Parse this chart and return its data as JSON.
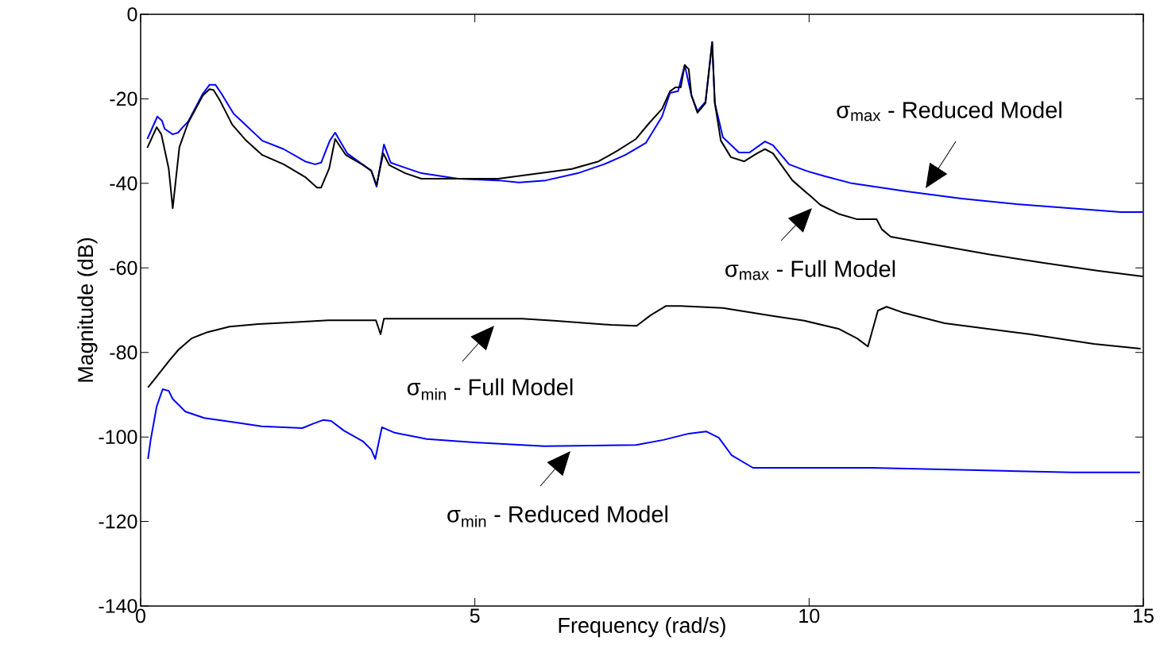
{
  "chart_data": {
    "type": "line",
    "xlabel": "Frequency (rad/s)",
    "ylabel": "Magnitude (dB)",
    "xlim": [
      0,
      15
    ],
    "ylim": [
      -140,
      0
    ],
    "xticks": [
      0,
      5,
      10,
      15
    ],
    "yticks": [
      -140,
      -120,
      -100,
      -80,
      -60,
      -40,
      -20,
      0
    ],
    "series": [
      {
        "color": "#0000ff",
        "x": [
          0.1,
          0.25,
          0.32,
          0.36,
          0.48,
          0.56,
          0.62,
          0.71,
          0.93,
          1.03,
          1.12,
          1.21,
          1.39,
          1.58,
          1.82,
          2.14,
          2.46,
          2.61,
          2.7,
          2.83,
          2.91,
          3.09,
          3.45,
          3.53,
          3.64,
          3.74,
          3.92,
          4.2,
          4.75,
          5.35,
          5.66,
          6.06,
          6.54,
          6.93,
          7.25,
          7.56,
          7.8,
          7.92,
          8.04,
          8.14,
          8.24,
          8.33,
          8.45,
          8.55,
          8.59,
          8.71,
          8.95,
          9.11,
          9.34,
          9.46,
          9.7,
          9.95,
          10.23,
          10.64,
          11.46,
          12.28,
          13.1,
          13.92,
          14.66,
          14.99
        ],
        "values": [
          -29.5,
          -24.2,
          -25.2,
          -27.1,
          -28.4,
          -28.0,
          -26.9,
          -25.4,
          -18.8,
          -16.7,
          -16.7,
          -18.8,
          -23.5,
          -26.3,
          -29.9,
          -31.9,
          -34.8,
          -35.5,
          -35.1,
          -29.9,
          -28.0,
          -32.9,
          -37.0,
          -40.8,
          -30.8,
          -35.1,
          -36.1,
          -37.6,
          -38.9,
          -39.3,
          -39.8,
          -39.3,
          -37.6,
          -35.5,
          -33.3,
          -30.4,
          -24.2,
          -18.6,
          -18.2,
          -12.0,
          -19.2,
          -22.9,
          -20.7,
          -6.6,
          -21.0,
          -29.1,
          -32.7,
          -32.7,
          -30.1,
          -31.0,
          -35.5,
          -37.0,
          -38.3,
          -40.0,
          -41.9,
          -43.6,
          -44.9,
          -45.9,
          -46.8,
          -46.8
        ]
      },
      {
        "color": "#000000",
        "x": [
          0.1,
          0.24,
          0.31,
          0.42,
          0.48,
          0.58,
          0.71,
          0.93,
          1.03,
          1.09,
          1.19,
          1.37,
          1.58,
          1.82,
          2.14,
          2.46,
          2.64,
          2.7,
          2.82,
          2.91,
          3.07,
          3.33,
          3.45,
          3.53,
          3.63,
          3.72,
          3.96,
          4.2,
          4.75,
          5.35,
          6.45,
          6.85,
          7.13,
          7.41,
          7.61,
          7.8,
          7.92,
          8.0,
          8.08,
          8.14,
          8.2,
          8.24,
          8.33,
          8.45,
          8.55,
          8.59,
          8.68,
          8.83,
          9.03,
          9.22,
          9.34,
          9.46,
          9.75,
          10.02,
          10.17,
          10.44,
          10.72,
          11.01,
          11.09,
          11.22,
          11.87,
          12.69,
          13.51,
          14.33,
          14.99
        ],
        "values": [
          -31.6,
          -26.7,
          -28.4,
          -36.5,
          -45.9,
          -31.4,
          -25.7,
          -19.2,
          -17.7,
          -17.9,
          -20.5,
          -26.1,
          -29.9,
          -33.3,
          -35.5,
          -38.5,
          -41.0,
          -41.0,
          -36.5,
          -29.5,
          -33.3,
          -35.7,
          -37.0,
          -40.4,
          -32.9,
          -35.7,
          -37.6,
          -38.9,
          -38.9,
          -38.9,
          -36.6,
          -34.8,
          -32.3,
          -29.5,
          -25.7,
          -22.4,
          -18.2,
          -17.3,
          -17.3,
          -12.0,
          -13.0,
          -19.2,
          -23.3,
          -21.0,
          -6.6,
          -21.0,
          -29.9,
          -33.8,
          -34.8,
          -32.9,
          -31.9,
          -32.9,
          -39.3,
          -43.0,
          -45.1,
          -47.2,
          -48.5,
          -48.5,
          -50.9,
          -52.6,
          -54.5,
          -56.8,
          -58.8,
          -60.7,
          -62.0
        ]
      },
      {
        "color": "#000000",
        "x": [
          0.11,
          0.24,
          0.43,
          0.57,
          0.76,
          1.0,
          1.33,
          1.76,
          2.23,
          2.81,
          3.52,
          3.59,
          3.64,
          4.28,
          5.71,
          6.18,
          7.04,
          7.42,
          7.63,
          7.86,
          8.08,
          8.71,
          9.47,
          9.93,
          10.44,
          10.72,
          10.88,
          11.03,
          11.16,
          11.39,
          12.03,
          13.3,
          14.26,
          14.96
        ],
        "values": [
          -88.3,
          -85.7,
          -81.9,
          -79.3,
          -76.7,
          -75.2,
          -73.9,
          -73.3,
          -72.9,
          -72.4,
          -72.4,
          -75.7,
          -72.0,
          -72.0,
          -72.0,
          -72.5,
          -73.5,
          -73.7,
          -71.2,
          -69.0,
          -69.0,
          -69.5,
          -71.4,
          -72.5,
          -74.4,
          -76.7,
          -78.6,
          -70.1,
          -69.2,
          -70.5,
          -73.1,
          -75.7,
          -78.0,
          -79.1
        ]
      },
      {
        "color": "#0000ff",
        "x": [
          0.11,
          0.15,
          0.24,
          0.33,
          0.42,
          0.48,
          0.67,
          0.95,
          1.43,
          1.81,
          2.42,
          2.59,
          2.73,
          2.85,
          3.04,
          3.33,
          3.45,
          3.51,
          3.61,
          3.8,
          4.28,
          4.99,
          6.04,
          7.41,
          7.82,
          8.2,
          8.46,
          8.65,
          8.84,
          9.16,
          10.94,
          12.65,
          13.93,
          14.95
        ],
        "values": [
          -105.2,
          -100.7,
          -92.8,
          -88.7,
          -89.1,
          -91.0,
          -94.0,
          -95.5,
          -96.6,
          -97.5,
          -97.9,
          -96.8,
          -96.0,
          -96.2,
          -98.5,
          -101.1,
          -103.0,
          -105.2,
          -97.7,
          -99.0,
          -100.5,
          -101.3,
          -102.2,
          -101.9,
          -100.7,
          -99.2,
          -98.7,
          -100.2,
          -104.3,
          -107.3,
          -107.3,
          -107.9,
          -108.4,
          -108.4
        ]
      }
    ],
    "annotations": [
      "σ$_{max}$ - Reduced Model",
      "σ$_{max}$ - Full Model",
      "σ$_{min}$ - Full Model",
      "σ$_{min}$ - Reduced Model"
    ]
  }
}
